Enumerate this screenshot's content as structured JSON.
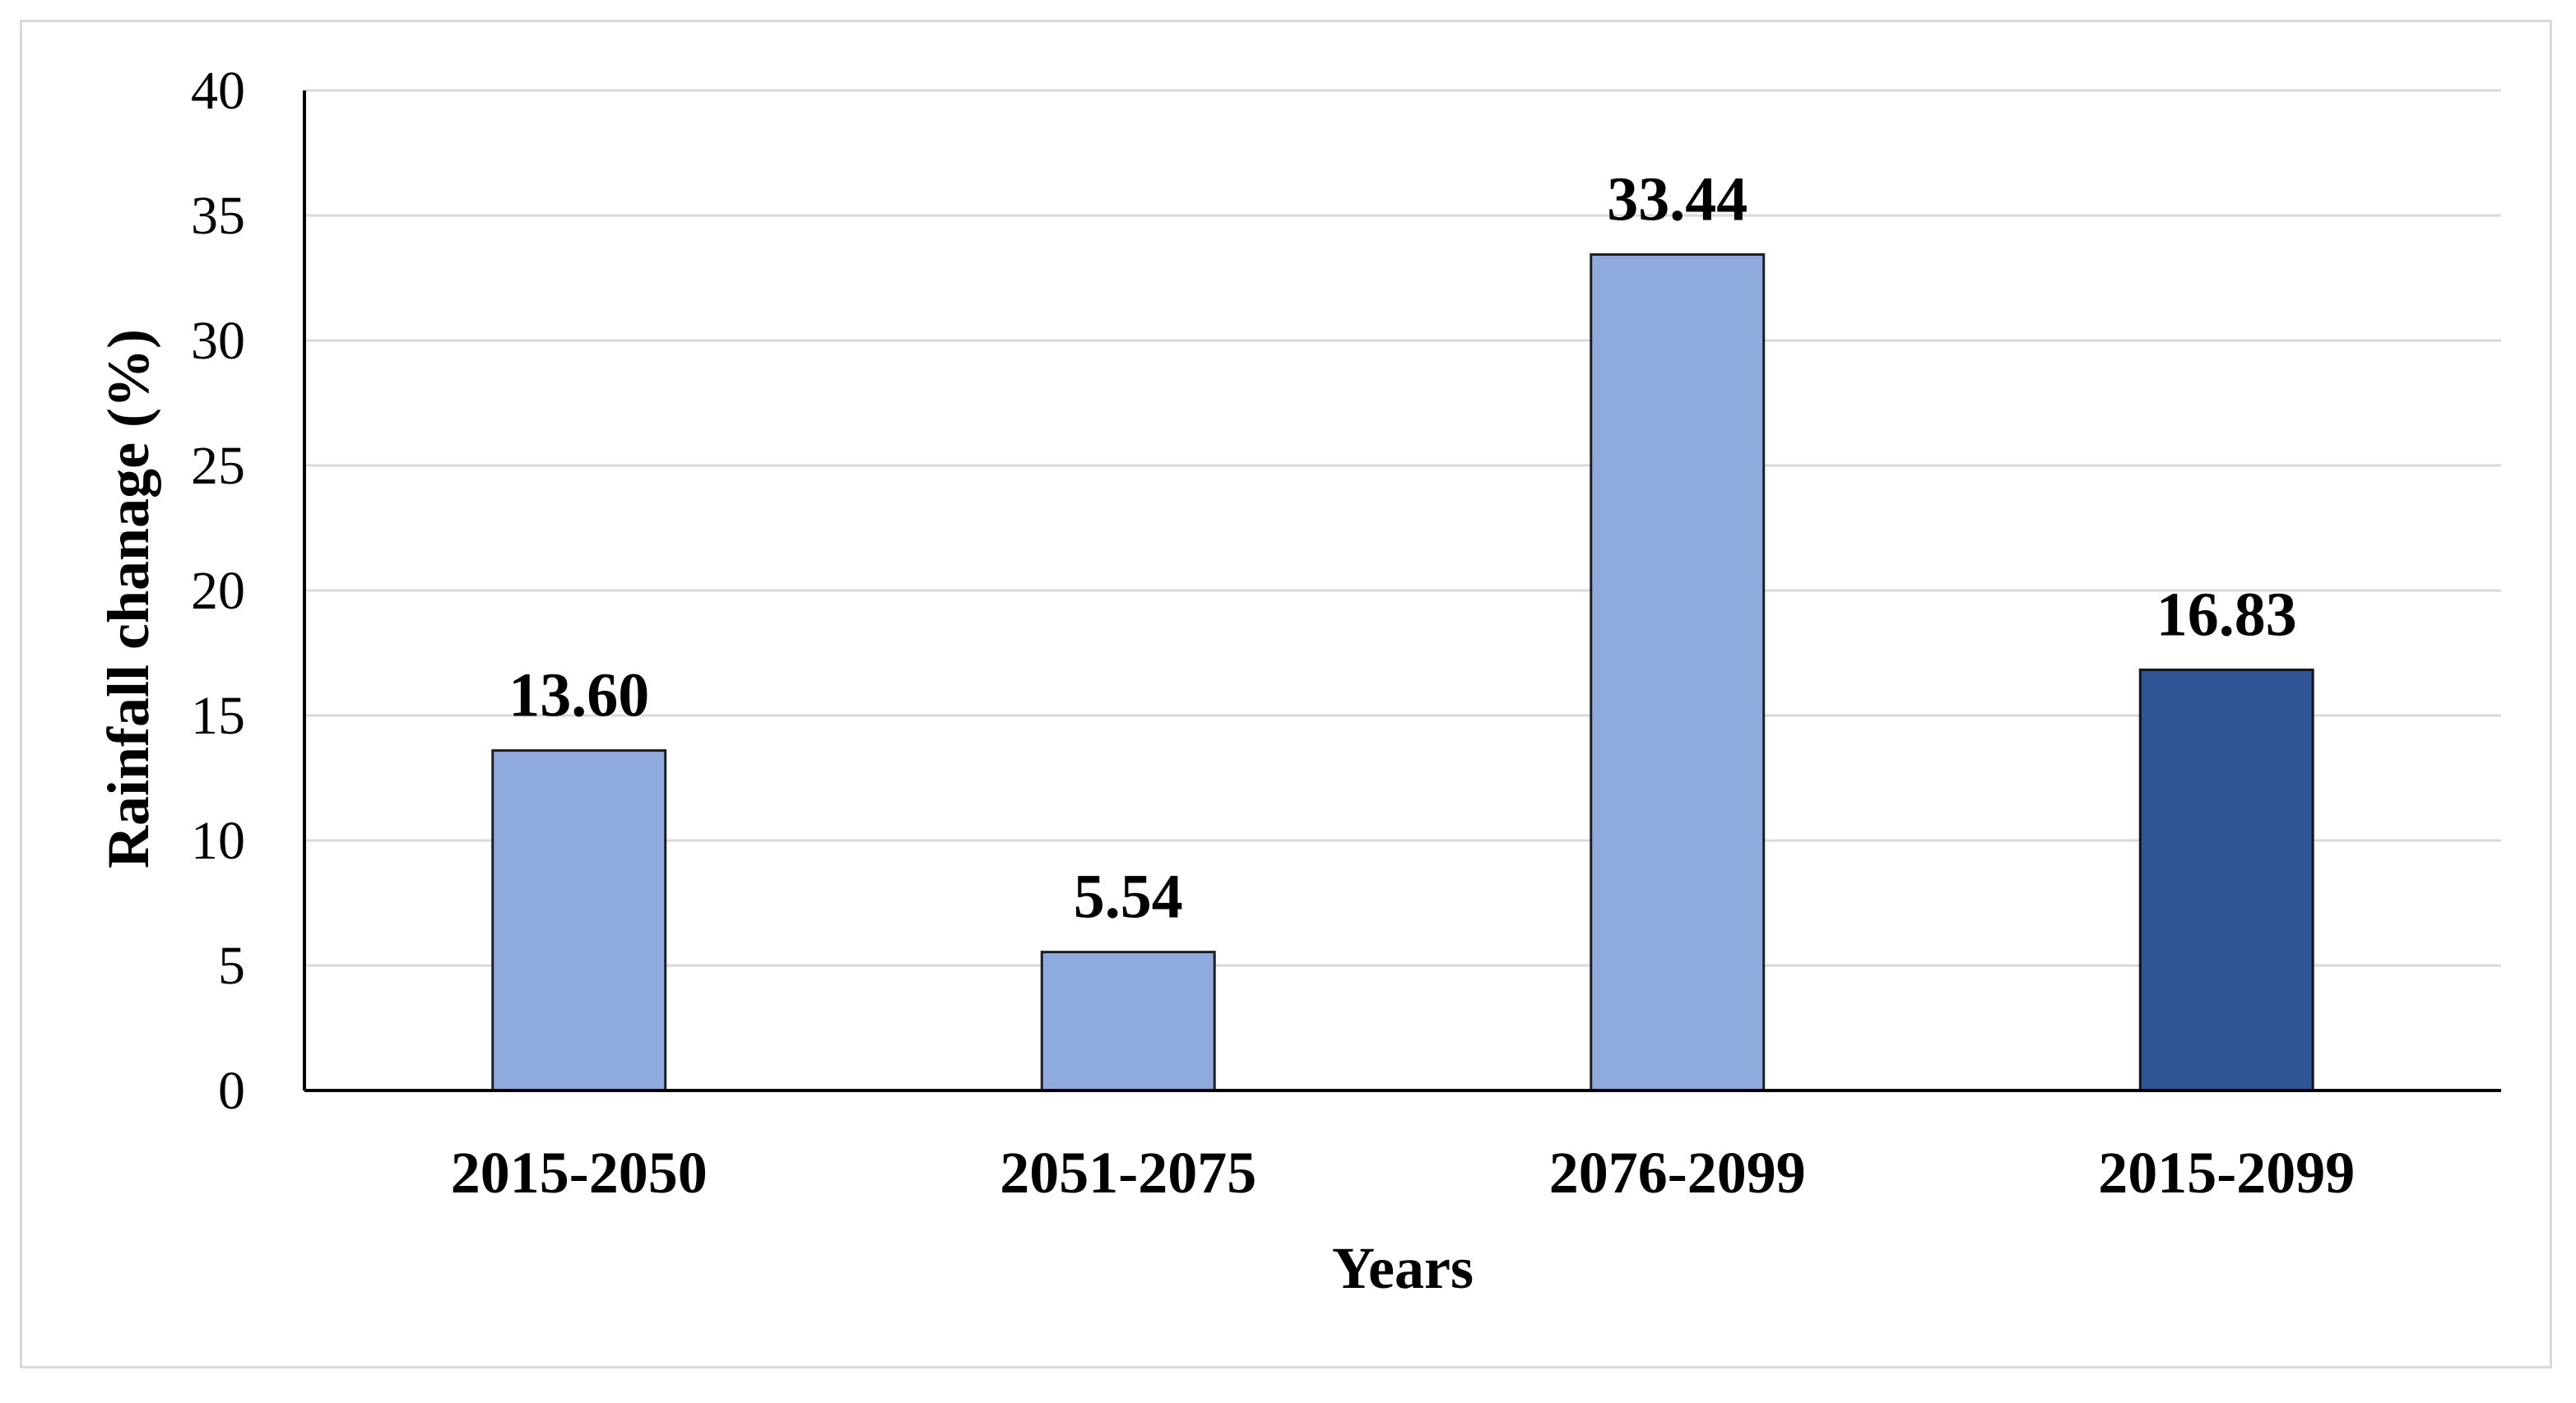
{
  "chart_data": {
    "type": "bar",
    "categories": [
      "2015-2050",
      "2051-2075",
      "2076-2099",
      "2015-2099"
    ],
    "values": [
      13.6,
      5.54,
      33.44,
      16.83
    ],
    "data_labels": [
      "13.60",
      "5.54",
      "33.44",
      "16.83"
    ],
    "bar_colors": [
      "#8faadc",
      "#8faadc",
      "#8faadc",
      "#2f5597"
    ],
    "xlabel": "Years",
    "ylabel": "Rainfall chanage (%)",
    "ylim": [
      0,
      40
    ],
    "yticks": [
      0,
      5,
      10,
      15,
      20,
      25,
      30,
      35,
      40
    ],
    "grid": true,
    "legend": "none"
  },
  "colors": {
    "gridline": "#d9d9d9",
    "axis": "#000000",
    "bar_outline": "#000000"
  }
}
